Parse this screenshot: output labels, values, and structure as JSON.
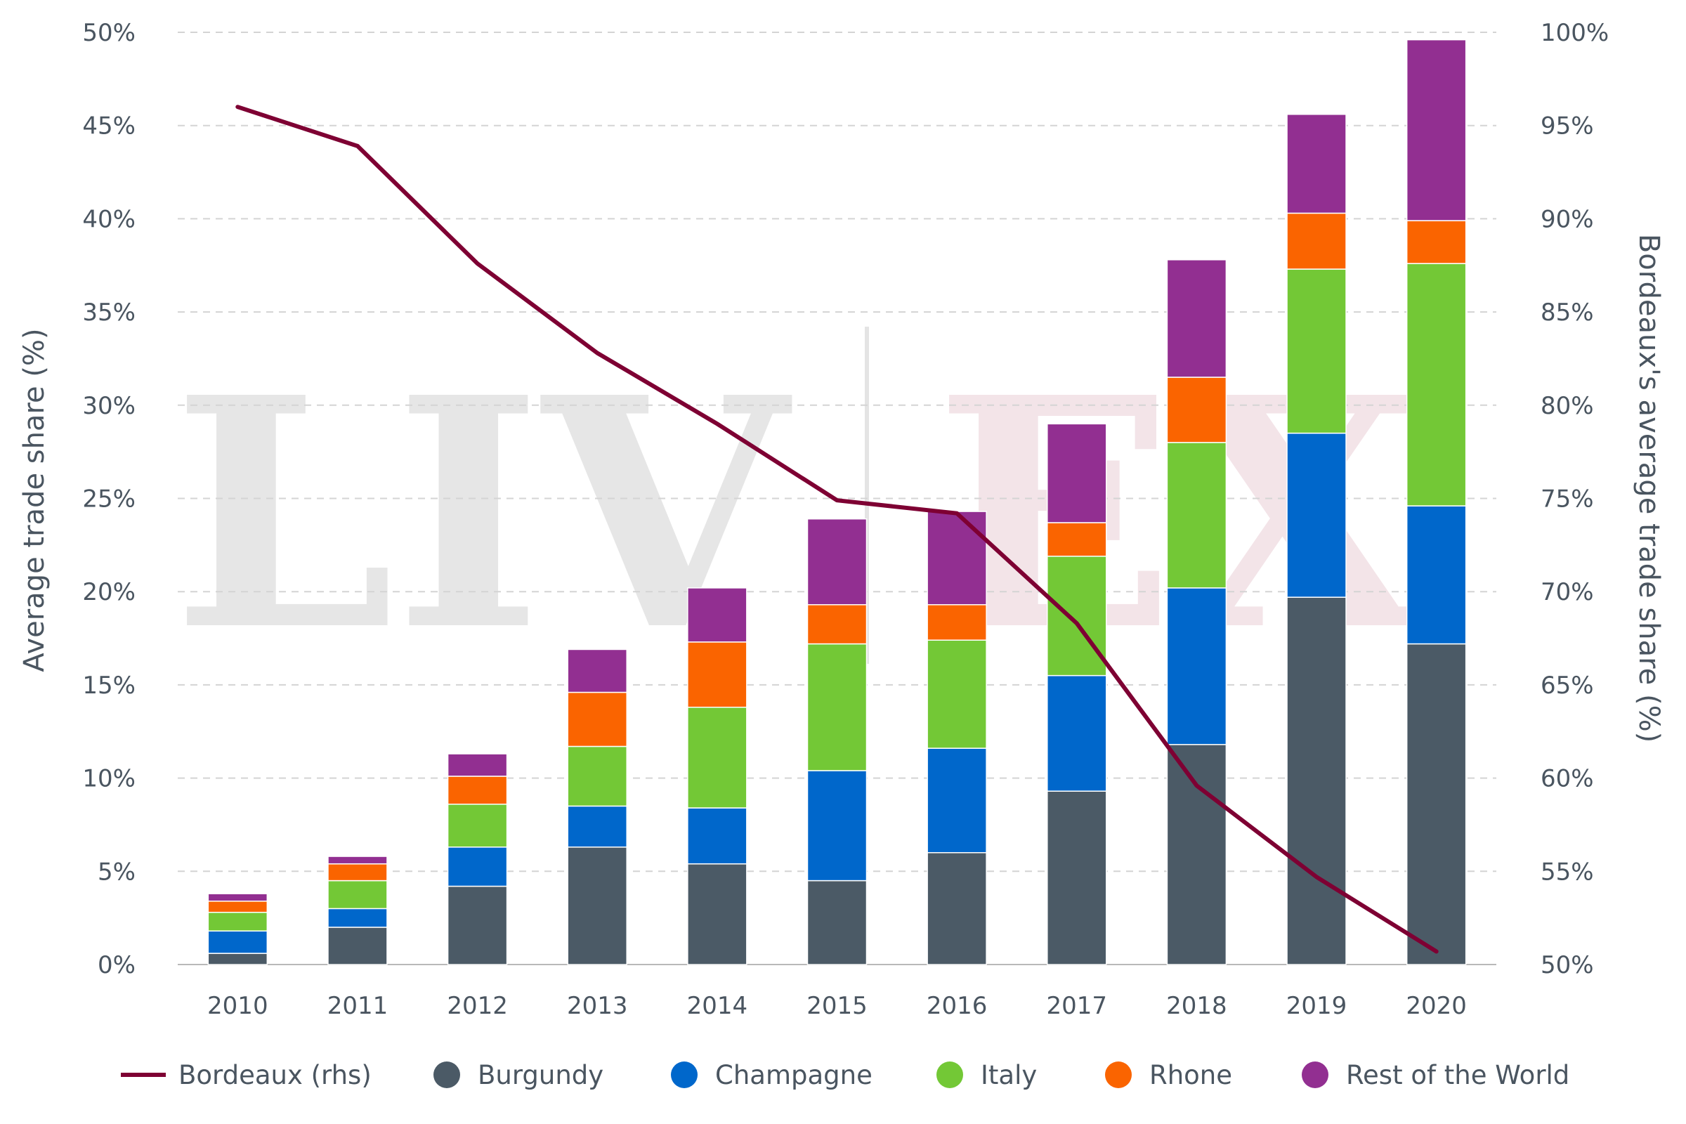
{
  "chart_data": {
    "type": "bar",
    "stacked": true,
    "categories": [
      "2010",
      "2011",
      "2012",
      "2013",
      "2014",
      "2015",
      "2016",
      "2017",
      "2018",
      "2019",
      "2020"
    ],
    "series": [
      {
        "name": "Burgundy",
        "color": "#4b5a66",
        "values": [
          0.6,
          2.0,
          4.2,
          6.3,
          5.4,
          4.5,
          6.0,
          9.3,
          11.8,
          19.7,
          17.2
        ]
      },
      {
        "name": "Champagne",
        "color": "#0067cb",
        "values": [
          1.2,
          1.0,
          2.1,
          2.2,
          3.0,
          5.9,
          5.6,
          6.2,
          8.4,
          8.8,
          7.4
        ]
      },
      {
        "name": "Italy",
        "color": "#73c836",
        "values": [
          1.0,
          1.5,
          2.3,
          3.2,
          5.4,
          6.8,
          5.8,
          6.4,
          7.8,
          8.8,
          13.0
        ]
      },
      {
        "name": "Rhone",
        "color": "#fa6400",
        "values": [
          0.6,
          0.9,
          1.5,
          2.9,
          3.5,
          2.1,
          1.9,
          1.8,
          3.5,
          3.0,
          2.3
        ]
      },
      {
        "name": "Rest of the World",
        "color": "#922f91",
        "values": [
          0.4,
          0.4,
          1.2,
          2.3,
          2.9,
          4.6,
          5.0,
          5.3,
          6.3,
          5.3,
          9.7
        ]
      }
    ],
    "line_series": {
      "name": "Bordeaux (rhs)",
      "color": "#7e0033",
      "values": [
        96.0,
        93.9,
        87.6,
        82.8,
        79.0,
        74.9,
        74.2,
        68.3,
        59.6,
        54.7,
        50.7
      ]
    },
    "ylabel": "Average trade share (%)",
    "y2label": "Bordeaux's average trade share (%)",
    "ylim": [
      0,
      50
    ],
    "y2lim": [
      50,
      100
    ],
    "yticks": [
      "0%",
      "5%",
      "10%",
      "15%",
      "20%",
      "25%",
      "30%",
      "35%",
      "40%",
      "45%",
      "50%"
    ],
    "y2ticks": [
      "50%",
      "55%",
      "60%",
      "65%",
      "70%",
      "75%",
      "80%",
      "85%",
      "90%",
      "95%",
      "100%"
    ],
    "grid": true,
    "legend_position": "bottom",
    "legend": [
      "Bordeaux (rhs)",
      "Burgundy",
      "Champagne",
      "Italy",
      "Rhone",
      "Rest of the World"
    ]
  },
  "watermark": {
    "left": "LIV",
    "right": "EX"
  }
}
